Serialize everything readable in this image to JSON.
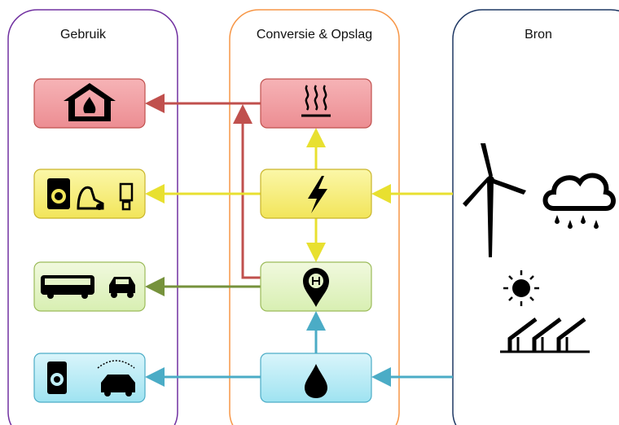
{
  "columns": [
    {
      "title": "Gebruik"
    },
    {
      "title": "Conversie & Opslag"
    },
    {
      "title": "Bron"
    }
  ]
}
